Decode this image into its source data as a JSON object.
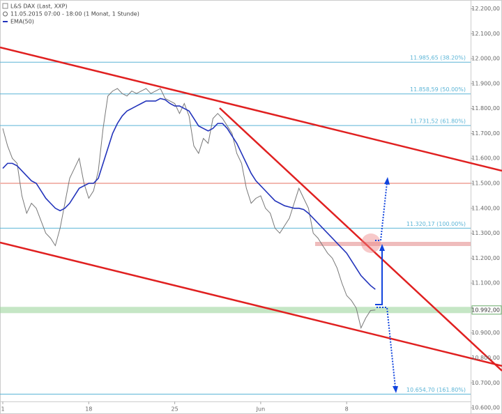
{
  "chart_data": {
    "type": "line",
    "title": "L&S DAX (Last, XXP)",
    "subtitle": "11.05.2015 07:00 - 18:00 (1 Monat, 1 Stunde)",
    "categories": [
      "1",
      null,
      null,
      null,
      null,
      null,
      null,
      null,
      null,
      null,
      null,
      null,
      null,
      null,
      null,
      null,
      null,
      null,
      "18",
      null,
      null,
      null,
      null,
      null,
      null,
      null,
      null,
      null,
      null,
      null,
      null,
      null,
      null,
      null,
      null,
      null,
      "25",
      null,
      null,
      null,
      null,
      null,
      null,
      null,
      null,
      null,
      null,
      null,
      null,
      null,
      null,
      null,
      null,
      null,
      "Jun",
      null,
      null,
      null,
      null,
      null,
      null,
      null,
      null,
      null,
      null,
      null,
      null,
      null,
      null,
      null,
      null,
      null,
      "8",
      null,
      null,
      null,
      null,
      null,
      null
    ],
    "series": [
      {
        "color": "#777777",
        "values": [
          11720,
          11650,
          11600,
          11580,
          11450,
          11380,
          11420,
          11400,
          11350,
          11300,
          11280,
          11250,
          11320,
          11420,
          11520,
          11560,
          11600,
          11500,
          11440,
          11470,
          11550,
          11720,
          11850,
          11870,
          11880,
          11860,
          11850,
          11870,
          11860,
          11870,
          11880,
          11860,
          11870,
          11880,
          11840,
          11830,
          11820,
          11780,
          11820,
          11770,
          11650,
          11620,
          11680,
          11660,
          11760,
          11780,
          11760,
          11730,
          11700,
          11620,
          11580,
          11480,
          11420,
          11440,
          11450,
          11400,
          11380,
          11320,
          11300,
          11330,
          11360,
          11420,
          11480,
          11440,
          11400,
          11300,
          11280,
          11250,
          11220,
          11200,
          11160,
          11100,
          11050,
          11030,
          11000,
          10920,
          10960,
          10990,
          10992
        ]
      },
      {
        "name": "EMA(50)",
        "color": "#2233bb",
        "values": [
          11560,
          11580,
          11580,
          11570,
          11550,
          11530,
          11510,
          11500,
          11470,
          11440,
          11420,
          11400,
          11390,
          11400,
          11420,
          11450,
          11480,
          11490,
          11500,
          11500,
          11520,
          11580,
          11640,
          11700,
          11740,
          11770,
          11790,
          11800,
          11810,
          11820,
          11830,
          11830,
          11830,
          11840,
          11835,
          11820,
          11810,
          11810,
          11800,
          11790,
          11760,
          11730,
          11720,
          11710,
          11720,
          11740,
          11740,
          11720,
          11690,
          11660,
          11620,
          11580,
          11540,
          11510,
          11490,
          11470,
          11450,
          11430,
          11420,
          11410,
          11405,
          11400,
          11400,
          11395,
          11380,
          11360,
          11340,
          11320,
          11300,
          11280,
          11260,
          11240,
          11220,
          11190,
          11160,
          11130,
          11110,
          11090,
          11075
        ]
      }
    ],
    "ylim": [
      10575,
      12235
    ],
    "yticks": [
      {
        "value": 10600,
        "label": "10.600,00"
      },
      {
        "value": 10700,
        "label": "10.700,00"
      },
      {
        "value": 10800,
        "label": "10.800,00"
      },
      {
        "value": 10900,
        "label": "10.900,00"
      },
      {
        "value": 11000,
        "label": "11.000,00"
      },
      {
        "value": 11100,
        "label": "11.100,00"
      },
      {
        "value": 11200,
        "label": "11.200,00"
      },
      {
        "value": 11300,
        "label": "11.300,00"
      },
      {
        "value": 11400,
        "label": "11.400,00"
      },
      {
        "value": 11500,
        "label": "11.500,00"
      },
      {
        "value": 11600,
        "label": "11.600,00"
      },
      {
        "value": 11700,
        "label": "11.700,00"
      },
      {
        "value": 11800,
        "label": "11.800,00"
      },
      {
        "value": 11900,
        "label": "11.900,00"
      },
      {
        "value": 12000,
        "label": "12.000,00"
      },
      {
        "value": 12100,
        "label": "12.100,00"
      },
      {
        "value": 12200,
        "label": "12.200,00"
      }
    ],
    "levels": [
      {
        "value": 11985.65,
        "label": "11.985,65 (38.20%)",
        "color": "#5ab4d6"
      },
      {
        "value": 11858.59,
        "label": "11.858,59 (50.00%)",
        "color": "#5ab4d6"
      },
      {
        "value": 11731.52,
        "label": "11.731,52 (61.80%)",
        "color": "#5ab4d6"
      },
      {
        "value": 11500,
        "color": "#f2b8b0"
      },
      {
        "value": 11320.17,
        "label": "11.320,17 (100.00%)",
        "color": "#5ab4d6"
      },
      {
        "value": 10654.7,
        "label": "10.654,70 (161.80%)",
        "color": "#5ab4d6"
      }
    ],
    "current": {
      "value": 10992,
      "label": "10.992,00"
    }
  }
}
